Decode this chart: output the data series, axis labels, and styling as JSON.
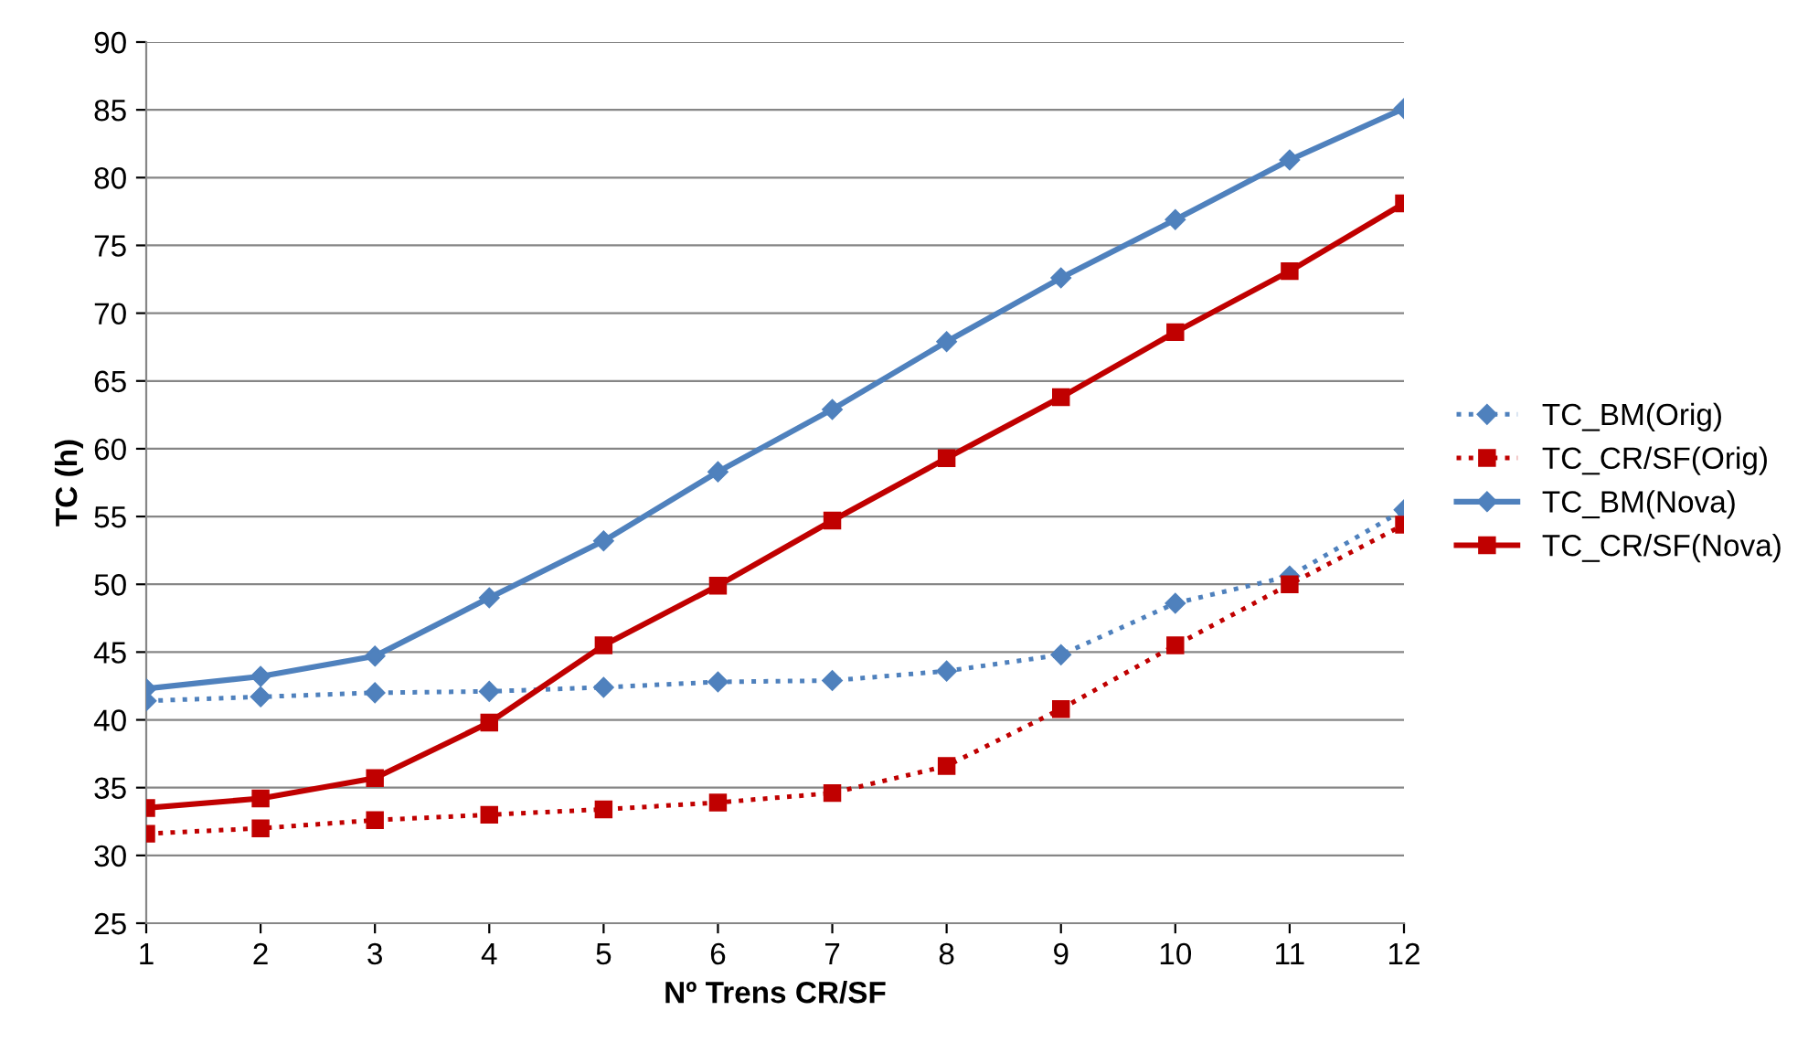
{
  "chart_data": {
    "type": "line",
    "xlabel": "Nº Trens CR/SF",
    "ylabel": "TC (h)",
    "x": [
      1,
      2,
      3,
      4,
      5,
      6,
      7,
      8,
      9,
      10,
      11,
      12
    ],
    "xlim": [
      1,
      12
    ],
    "xticks": [
      1,
      2,
      3,
      4,
      5,
      6,
      7,
      8,
      9,
      10,
      11,
      12
    ],
    "ylim": [
      25,
      90
    ],
    "yticks": [
      25,
      30,
      35,
      40,
      45,
      50,
      55,
      60,
      65,
      70,
      75,
      80,
      85,
      90
    ],
    "grid": "y",
    "legend": "right",
    "series": [
      {
        "name": "TC_BM(Orig)",
        "color": "#4f81bd",
        "marker": "diamond",
        "line_style": "dotted",
        "values": [
          41.4,
          41.7,
          42.0,
          42.1,
          42.4,
          42.8,
          42.9,
          43.6,
          44.8,
          48.6,
          50.6,
          55.5
        ]
      },
      {
        "name": "TC_CR/SF(Orig)",
        "color": "#c00000",
        "marker": "square",
        "line_style": "dotted",
        "values": [
          31.6,
          32.0,
          32.6,
          33.0,
          33.4,
          33.9,
          34.6,
          36.6,
          40.8,
          45.5,
          50.0,
          54.4
        ]
      },
      {
        "name": "TC_BM(Nova)",
        "color": "#4f81bd",
        "marker": "diamond",
        "line_style": "solid",
        "values": [
          42.3,
          43.2,
          44.7,
          49.0,
          53.2,
          58.3,
          62.9,
          67.9,
          72.6,
          76.9,
          81.3,
          85.1
        ]
      },
      {
        "name": "TC_CR/SF(Nova)",
        "color": "#c00000",
        "marker": "square",
        "line_style": "solid",
        "values": [
          33.5,
          34.2,
          35.7,
          39.8,
          45.5,
          49.9,
          54.7,
          59.3,
          63.8,
          68.6,
          73.1,
          78.1
        ]
      }
    ]
  }
}
